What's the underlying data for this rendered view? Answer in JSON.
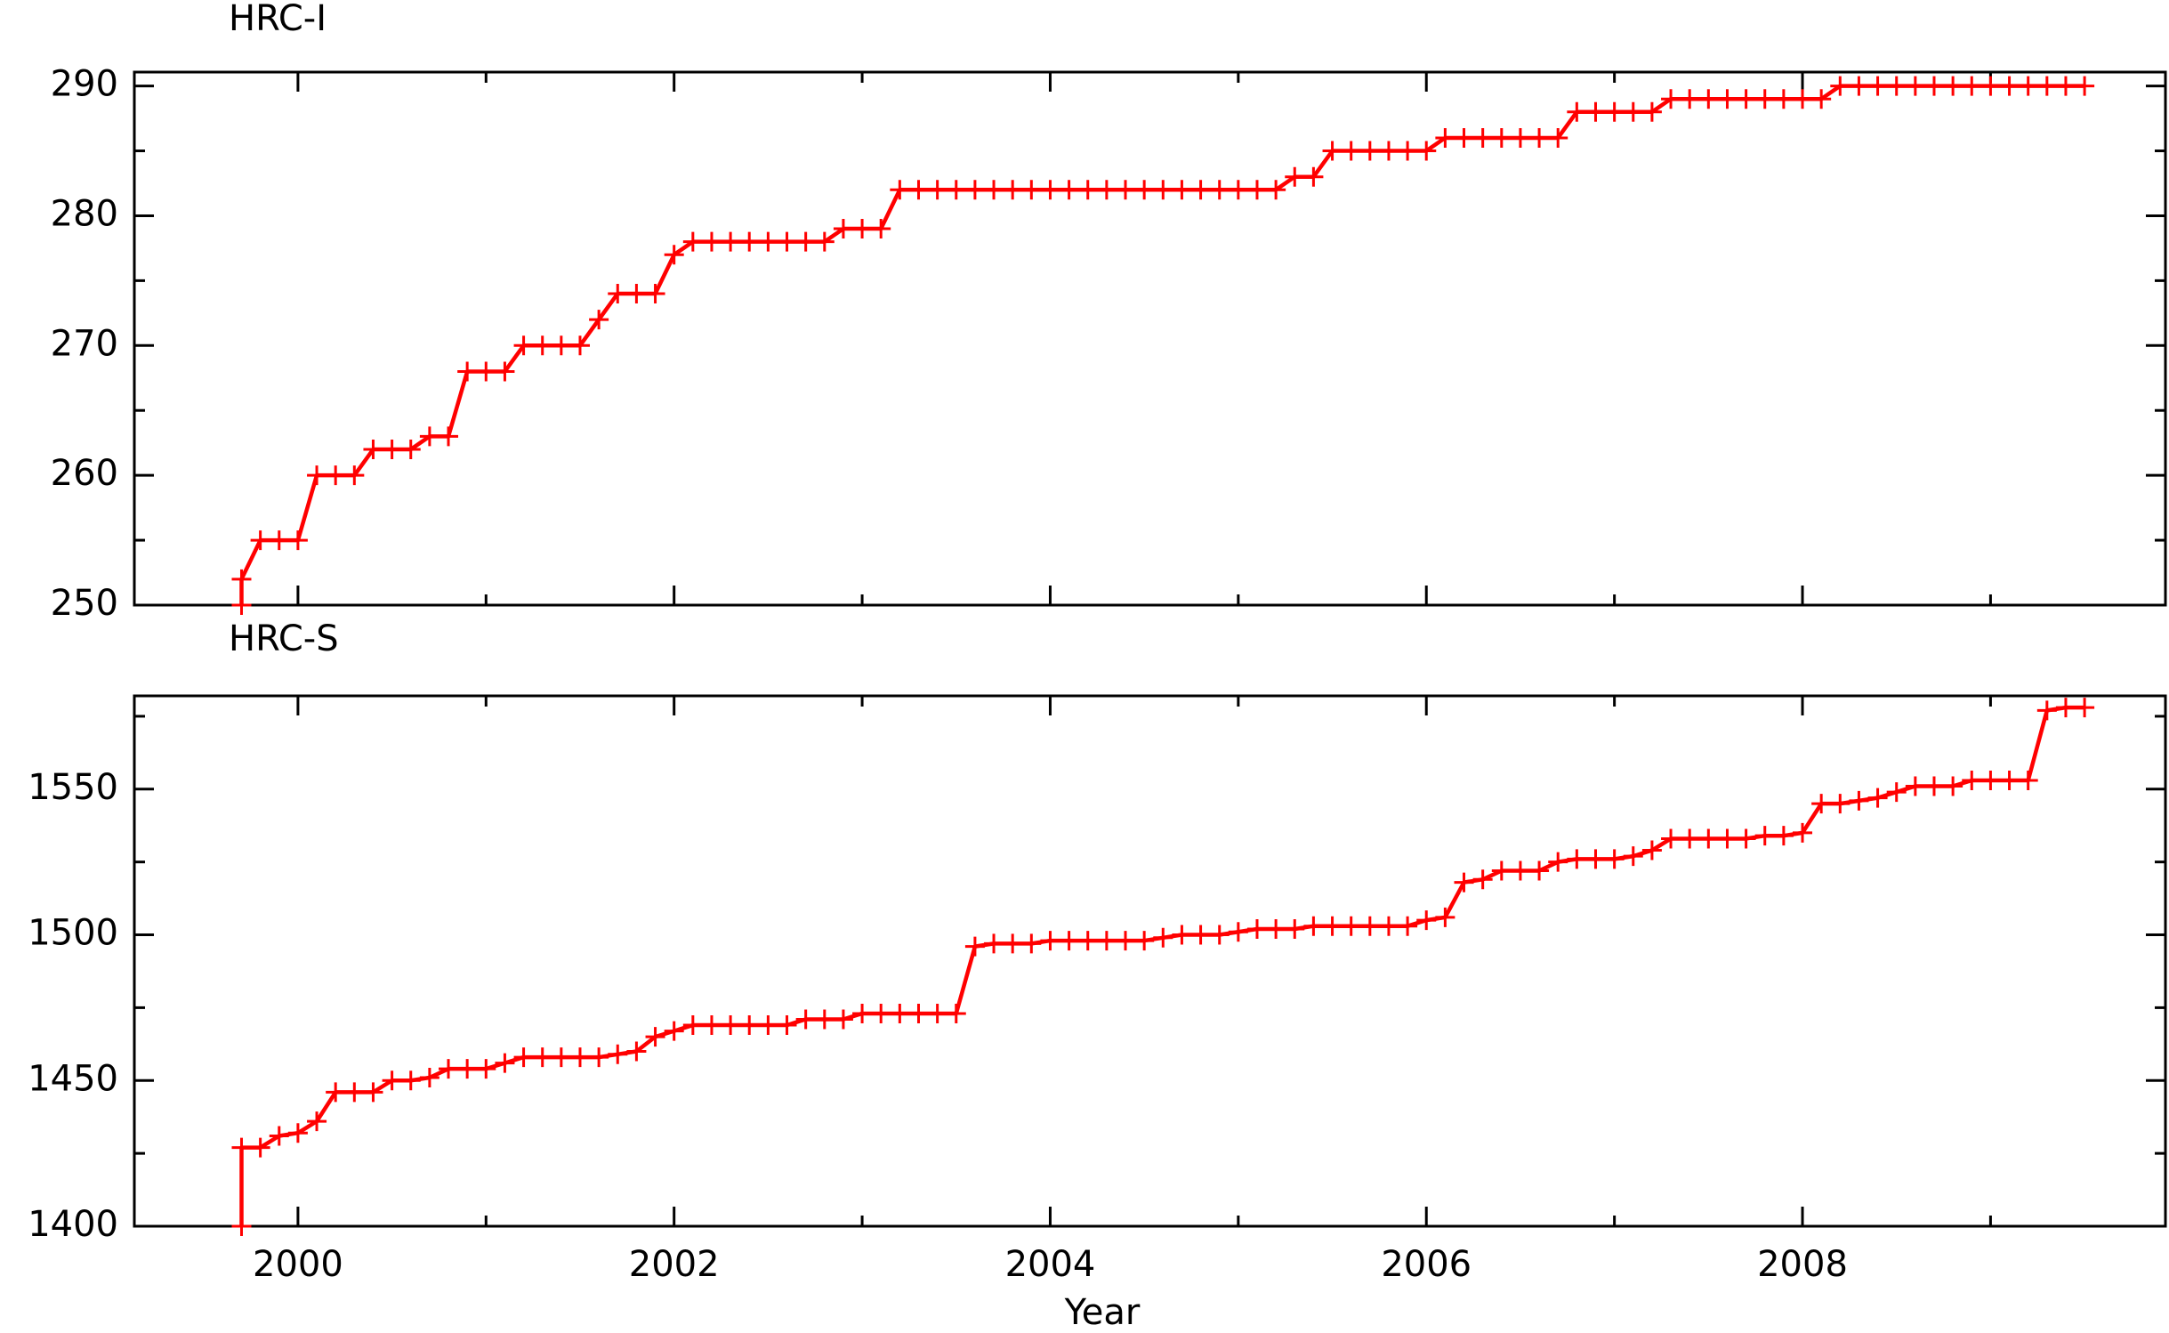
{
  "chart_data": [
    {
      "type": "line",
      "title": "HRC-I",
      "x": [
        1999.7,
        1999.7,
        1999.8,
        1999.9,
        2000.0,
        2000.1,
        2000.2,
        2000.3,
        2000.4,
        2000.5,
        2000.6,
        2000.7,
        2000.8,
        2000.9,
        2001.0,
        2001.1,
        2001.2,
        2001.3,
        2001.4,
        2001.5,
        2001.6,
        2001.7,
        2001.8,
        2001.9,
        2002.0,
        2002.1,
        2002.2,
        2002.3,
        2002.4,
        2002.5,
        2002.6,
        2002.7,
        2002.8,
        2002.9,
        2003.0,
        2003.1,
        2003.2,
        2003.3,
        2003.4,
        2003.5,
        2003.6,
        2003.7,
        2003.8,
        2003.9,
        2004.0,
        2004.1,
        2004.2,
        2004.3,
        2004.4,
        2004.5,
        2004.6,
        2004.7,
        2004.8,
        2004.9,
        2005.0,
        2005.1,
        2005.2,
        2005.3,
        2005.4,
        2005.5,
        2005.6,
        2005.7,
        2005.8,
        2005.9,
        2006.0,
        2006.1,
        2006.2,
        2006.3,
        2006.4,
        2006.5,
        2006.6,
        2006.7,
        2006.8,
        2006.9,
        2007.0,
        2007.1,
        2007.2,
        2007.3,
        2007.4,
        2007.5,
        2007.6,
        2007.7,
        2007.8,
        2007.9,
        2008.0,
        2008.1,
        2008.2,
        2008.3,
        2008.4,
        2008.5,
        2008.6,
        2008.7,
        2008.8,
        2008.9,
        2009.0,
        2009.1,
        2009.2,
        2009.3,
        2009.4,
        2009.5
      ],
      "series": [
        {
          "color": "#ff0000",
          "values": [
            250,
            252,
            255,
            255,
            255,
            260,
            260,
            260,
            262,
            262,
            262,
            263,
            263,
            268,
            268,
            268,
            270,
            270,
            270,
            270,
            272,
            274,
            274,
            274,
            277,
            278,
            278,
            278,
            278,
            278,
            278,
            278,
            278,
            279,
            279,
            279,
            282,
            282,
            282,
            282,
            282,
            282,
            282,
            282,
            282,
            282,
            282,
            282,
            282,
            282,
            282,
            282,
            282,
            282,
            282,
            282,
            282,
            283,
            283,
            285,
            285,
            285,
            285,
            285,
            285,
            286,
            286,
            286,
            286,
            286,
            286,
            286,
            288,
            288,
            288,
            288,
            288,
            289,
            289,
            289,
            289,
            289,
            289,
            289,
            289,
            289,
            290,
            290,
            290,
            290,
            290,
            290,
            290,
            290,
            290,
            290,
            290,
            290,
            290,
            290
          ]
        }
      ],
      "xlim": [
        1999.13,
        2009.93
      ],
      "xticks": [
        2000,
        2002,
        2004,
        2006,
        2008
      ],
      "xminorticks": [
        2001,
        2003,
        2005,
        2007,
        2009
      ],
      "ylim": [
        250,
        291.07
      ],
      "yticks": [
        250,
        260,
        270,
        280,
        290
      ],
      "yminorticks": [
        255,
        265,
        275,
        285
      ]
    },
    {
      "type": "line",
      "title": "HRC-S",
      "xlabel": "Year",
      "x": [
        1999.7,
        1999.7,
        1999.8,
        1999.9,
        2000.0,
        2000.1,
        2000.2,
        2000.3,
        2000.4,
        2000.5,
        2000.6,
        2000.7,
        2000.8,
        2000.9,
        2001.0,
        2001.1,
        2001.2,
        2001.3,
        2001.4,
        2001.5,
        2001.6,
        2001.7,
        2001.8,
        2001.9,
        2002.0,
        2002.1,
        2002.2,
        2002.3,
        2002.4,
        2002.5,
        2002.6,
        2002.7,
        2002.8,
        2002.9,
        2003.0,
        2003.1,
        2003.2,
        2003.3,
        2003.4,
        2003.5,
        2003.6,
        2003.7,
        2003.8,
        2003.9,
        2004.0,
        2004.1,
        2004.2,
        2004.3,
        2004.4,
        2004.5,
        2004.6,
        2004.7,
        2004.8,
        2004.9,
        2005.0,
        2005.1,
        2005.2,
        2005.3,
        2005.4,
        2005.5,
        2005.6,
        2005.7,
        2005.8,
        2005.9,
        2006.0,
        2006.1,
        2006.2,
        2006.3,
        2006.4,
        2006.5,
        2006.6,
        2006.7,
        2006.8,
        2006.9,
        2007.0,
        2007.1,
        2007.2,
        2007.3,
        2007.4,
        2007.5,
        2007.6,
        2007.7,
        2007.8,
        2007.9,
        2008.0,
        2008.1,
        2008.2,
        2008.3,
        2008.4,
        2008.5,
        2008.6,
        2008.7,
        2008.8,
        2008.9,
        2009.0,
        2009.1,
        2009.2,
        2009.3,
        2009.4,
        2009.5
      ],
      "series": [
        {
          "color": "#ff0000",
          "values": [
            1400,
            1427,
            1427,
            1431,
            1432,
            1436,
            1446,
            1446,
            1446,
            1450,
            1450,
            1451,
            1454,
            1454,
            1454,
            1456,
            1458,
            1458,
            1458,
            1458,
            1458,
            1459,
            1460,
            1465,
            1467,
            1469,
            1469,
            1469,
            1469,
            1469,
            1469,
            1471,
            1471,
            1471,
            1473,
            1473,
            1473,
            1473,
            1473,
            1473,
            1496,
            1497,
            1497,
            1497,
            1498,
            1498,
            1498,
            1498,
            1498,
            1498,
            1499,
            1500,
            1500,
            1500,
            1501,
            1502,
            1502,
            1502,
            1503,
            1503,
            1503,
            1503,
            1503,
            1503,
            1505,
            1506,
            1518,
            1519,
            1522,
            1522,
            1522,
            1525,
            1526,
            1526,
            1526,
            1527,
            1529,
            1533,
            1533,
            1533,
            1533,
            1533,
            1534,
            1534,
            1535,
            1545,
            1545,
            1546,
            1547,
            1549,
            1551,
            1551,
            1551,
            1553,
            1553,
            1553,
            1553,
            1577,
            1578,
            1578
          ]
        }
      ],
      "xlim": [
        1999.13,
        2009.93
      ],
      "xticks": [
        2000,
        2002,
        2004,
        2006,
        2008
      ],
      "xminorticks": [
        2001,
        2003,
        2005,
        2007,
        2009
      ],
      "ylim": [
        1400,
        1582
      ],
      "yticks": [
        1400,
        1450,
        1500,
        1550
      ],
      "yminorticks": [
        1425,
        1475,
        1525,
        1575
      ]
    }
  ]
}
